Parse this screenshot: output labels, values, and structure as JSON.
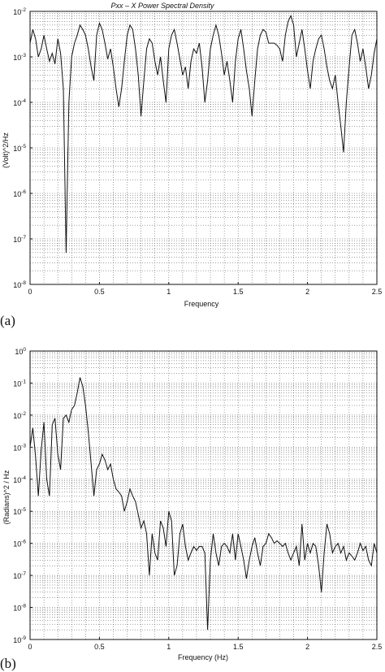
{
  "chart_data": [
    {
      "panel_label": "(a)",
      "type": "line",
      "title": "Pxx – X Power Spectral Density",
      "xlabel": "Frequency",
      "ylabel": "(Volt)^2/Hz",
      "xlim": [
        0,
        2.5
      ],
      "ylim": [
        1e-08,
        0.01
      ],
      "yscale": "log",
      "grid": true,
      "xticks": [
        "0",
        "0.5",
        "1",
        "1.5",
        "2",
        "2.5"
      ],
      "yticks": [
        {
          "base": "10",
          "exp": "-2"
        },
        {
          "base": "10",
          "exp": "-3"
        },
        {
          "base": "10",
          "exp": "-4"
        },
        {
          "base": "10",
          "exp": "-5"
        },
        {
          "base": "10",
          "exp": "-6"
        },
        {
          "base": "10",
          "exp": "-7"
        },
        {
          "base": "10",
          "exp": "-8"
        }
      ],
      "series": [
        {
          "x": [
            0.0,
            0.02,
            0.04,
            0.06,
            0.08,
            0.1,
            0.12,
            0.14,
            0.16,
            0.18,
            0.2,
            0.22,
            0.24,
            0.26,
            0.28,
            0.3,
            0.32,
            0.34,
            0.36,
            0.38,
            0.4,
            0.42,
            0.44,
            0.46,
            0.48,
            0.5,
            0.52,
            0.54,
            0.56,
            0.58,
            0.6,
            0.62,
            0.64,
            0.66,
            0.68,
            0.7,
            0.72,
            0.74,
            0.76,
            0.78,
            0.8,
            0.82,
            0.84,
            0.86,
            0.88,
            0.9,
            0.92,
            0.94,
            0.96,
            0.98,
            1.0,
            1.02,
            1.04,
            1.06,
            1.08,
            1.1,
            1.12,
            1.14,
            1.16,
            1.18,
            1.2,
            1.22,
            1.24,
            1.26,
            1.28,
            1.3,
            1.32,
            1.34,
            1.36,
            1.38,
            1.4,
            1.42,
            1.44,
            1.46,
            1.48,
            1.5,
            1.52,
            1.54,
            1.56,
            1.58,
            1.6,
            1.62,
            1.64,
            1.66,
            1.68,
            1.7,
            1.72,
            1.74,
            1.76,
            1.78,
            1.8,
            1.82,
            1.84,
            1.86,
            1.88,
            1.9,
            1.92,
            1.94,
            1.96,
            1.98,
            2.0,
            2.02,
            2.04,
            2.06,
            2.08,
            2.1,
            2.12,
            2.14,
            2.16,
            2.18,
            2.2,
            2.22,
            2.24,
            2.26,
            2.28,
            2.3,
            2.32,
            2.34,
            2.36,
            2.38,
            2.4,
            2.42,
            2.44,
            2.46,
            2.48,
            2.5
          ],
          "y": [
            0.002,
            0.004,
            0.0025,
            0.001,
            0.0015,
            0.003,
            0.0015,
            0.0008,
            0.0012,
            0.0007,
            0.0025,
            0.0012,
            0.0002,
            5e-08,
            0.0001,
            0.001,
            0.002,
            0.003,
            0.005,
            0.004,
            0.003,
            0.0015,
            0.0006,
            0.0003,
            0.003,
            0.0055,
            0.004,
            0.002,
            0.0009,
            0.0015,
            0.0006,
            0.0002,
            8e-05,
            0.0002,
            0.0008,
            0.003,
            0.005,
            0.004,
            0.0015,
            0.0004,
            5e-05,
            0.0003,
            0.0015,
            0.0025,
            0.002,
            0.0008,
            0.0004,
            0.001,
            0.0003,
            0.0001,
            0.0015,
            0.003,
            0.004,
            0.002,
            0.0009,
            0.0004,
            0.0006,
            0.0002,
            0.0008,
            0.0015,
            0.0012,
            0.002,
            0.0006,
            0.0001,
            0.0003,
            0.0015,
            0.003,
            0.005,
            0.003,
            0.0012,
            0.0004,
            0.0008,
            0.0003,
            0.0001,
            0.0008,
            0.0025,
            0.004,
            0.0015,
            0.0005,
            0.0002,
            5e-05,
            0.0003,
            0.0015,
            0.003,
            0.004,
            0.0035,
            0.002,
            0.002,
            0.002,
            0.0018,
            0.0015,
            0.0008,
            0.003,
            0.006,
            0.008,
            0.005,
            0.001,
            0.002,
            0.004,
            0.0015,
            0.0005,
            0.0002,
            0.0008,
            0.0015,
            0.0025,
            0.003,
            0.0015,
            0.0006,
            0.0003,
            0.0002,
            0.0004,
            0.0001,
            3e-05,
            8e-06,
            0.0001,
            0.0006,
            0.003,
            0.004,
            0.002,
            0.0008,
            0.0015,
            0.0006,
            0.0002,
            0.0004,
            0.0012,
            0.0025
          ]
        }
      ]
    },
    {
      "panel_label": "(b)",
      "type": "line",
      "title": "",
      "xlabel": "Frequency  (Hz)",
      "ylabel": "(Radians)^2 / Hz",
      "xlim": [
        0,
        2.5
      ],
      "ylim": [
        1e-09,
        1
      ],
      "yscale": "log",
      "grid": true,
      "xticks": [
        "0",
        "0.5",
        "1",
        "1.5",
        "2",
        "2.5"
      ],
      "yticks": [
        {
          "base": "10",
          "exp": "0"
        },
        {
          "base": "10",
          "exp": "-1"
        },
        {
          "base": "10",
          "exp": "-2"
        },
        {
          "base": "10",
          "exp": "-3"
        },
        {
          "base": "10",
          "exp": "-4"
        },
        {
          "base": "10",
          "exp": "-5"
        },
        {
          "base": "10",
          "exp": "-6"
        },
        {
          "base": "10",
          "exp": "-7"
        },
        {
          "base": "10",
          "exp": "-8"
        },
        {
          "base": "10",
          "exp": "-9"
        }
      ],
      "series": [
        {
          "x": [
            0.0,
            0.02,
            0.04,
            0.06,
            0.08,
            0.1,
            0.12,
            0.14,
            0.16,
            0.18,
            0.2,
            0.22,
            0.24,
            0.26,
            0.28,
            0.3,
            0.32,
            0.34,
            0.36,
            0.38,
            0.4,
            0.42,
            0.44,
            0.46,
            0.48,
            0.5,
            0.52,
            0.54,
            0.56,
            0.58,
            0.6,
            0.62,
            0.64,
            0.66,
            0.68,
            0.7,
            0.72,
            0.74,
            0.76,
            0.78,
            0.8,
            0.82,
            0.84,
            0.86,
            0.88,
            0.9,
            0.92,
            0.94,
            0.96,
            0.98,
            1.0,
            1.02,
            1.04,
            1.06,
            1.08,
            1.1,
            1.12,
            1.14,
            1.16,
            1.18,
            1.2,
            1.22,
            1.24,
            1.26,
            1.28,
            1.3,
            1.32,
            1.34,
            1.36,
            1.38,
            1.4,
            1.42,
            1.44,
            1.46,
            1.48,
            1.5,
            1.52,
            1.54,
            1.56,
            1.58,
            1.6,
            1.62,
            1.64,
            1.66,
            1.68,
            1.7,
            1.72,
            1.74,
            1.76,
            1.78,
            1.8,
            1.82,
            1.84,
            1.86,
            1.88,
            1.9,
            1.92,
            1.94,
            1.96,
            1.98,
            2.0,
            2.02,
            2.04,
            2.06,
            2.08,
            2.1,
            2.12,
            2.14,
            2.16,
            2.18,
            2.2,
            2.22,
            2.24,
            2.26,
            2.28,
            2.3,
            2.32,
            2.34,
            2.36,
            2.38,
            2.4,
            2.42,
            2.44,
            2.46,
            2.48,
            2.5
          ],
          "y": [
            0.001,
            0.004,
            0.0005,
            3e-05,
            0.0008,
            0.006,
            0.0001,
            3e-05,
            0.005,
            0.008,
            0.0006,
            0.0002,
            0.008,
            0.01,
            0.006,
            0.015,
            0.02,
            0.05,
            0.15,
            0.08,
            0.02,
            0.003,
            0.0003,
            3e-05,
            0.0002,
            0.0003,
            0.0006,
            0.0004,
            0.0002,
            0.0003,
            0.0001,
            5e-05,
            4e-05,
            3e-05,
            1e-05,
            2e-05,
            5e-05,
            3e-05,
            2e-05,
            8e-06,
            3e-06,
            5e-06,
            2e-06,
            1e-07,
            2e-06,
            5e-07,
            3e-07,
            5e-06,
            3e-06,
            8e-07,
            1e-05,
            5e-06,
            1e-07,
            2e-07,
            2e-06,
            4e-06,
            8e-07,
            3e-07,
            5e-07,
            8e-07,
            6e-07,
            8e-07,
            8e-07,
            5e-07,
            2e-09,
            3e-07,
            2e-06,
            5e-07,
            2e-07,
            8e-07,
            1e-06,
            8e-07,
            5e-07,
            2e-06,
            3e-07,
            2e-06,
            8e-07,
            3e-07,
            8e-08,
            3e-07,
            8e-07,
            1.5e-06,
            5e-07,
            2e-07,
            8e-07,
            1e-06,
            2e-06,
            1.5e-06,
            1e-06,
            1.2e-06,
            1e-06,
            8e-07,
            1e-06,
            5e-07,
            3e-07,
            5e-07,
            8e-07,
            2e-07,
            4e-06,
            3e-07,
            1e-06,
            5e-07,
            1e-06,
            8e-07,
            2e-07,
            3e-08,
            5e-07,
            4e-06,
            2e-06,
            5e-07,
            8e-07,
            1e-06,
            5e-07,
            8e-07,
            3e-07,
            5e-07,
            4e-07,
            3e-07,
            5e-07,
            1e-06,
            6e-07,
            8e-07,
            3e-07,
            2e-07,
            1e-06,
            5e-07
          ]
        }
      ]
    }
  ]
}
